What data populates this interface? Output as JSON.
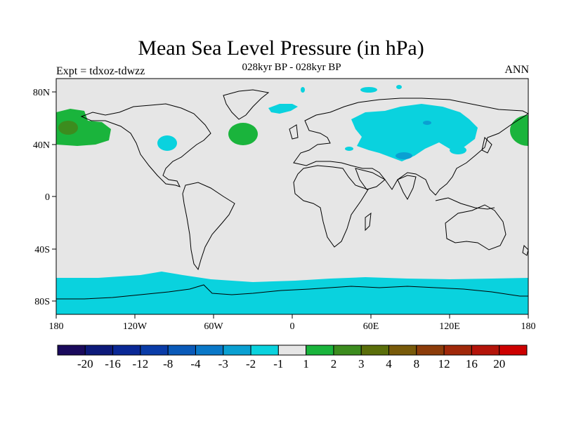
{
  "title": "Mean Sea Level Pressure (in hPa)",
  "subtitle": "028kyr BP - 028kyr BP",
  "experiment": "Expt = tdxoz-tdwzz",
  "season": "ANN",
  "lat_labels": [
    "80N",
    "40N",
    "0",
    "40S",
    "80S"
  ],
  "lon_labels": [
    "180",
    "120W",
    "60W",
    "0",
    "60E",
    "120E",
    "180"
  ],
  "legend": {
    "colors": [
      "#1a0a5c",
      "#0d1a7a",
      "#0a2896",
      "#0a3ca8",
      "#0a5ab9",
      "#0a78c8",
      "#0aa0d2",
      "#0ad2de",
      "#e6e6e6",
      "#1ab43c",
      "#3c8c1e",
      "#5a6e0a",
      "#785a0a",
      "#8c3c0a",
      "#a0280a",
      "#b4140a",
      "#cd0000"
    ],
    "labels": [
      "-20",
      "-16",
      "-12",
      "-8",
      "-4",
      "-3",
      "-2",
      "-1",
      "1",
      "2",
      "3",
      "4",
      "8",
      "12",
      "16",
      "20"
    ]
  }
}
